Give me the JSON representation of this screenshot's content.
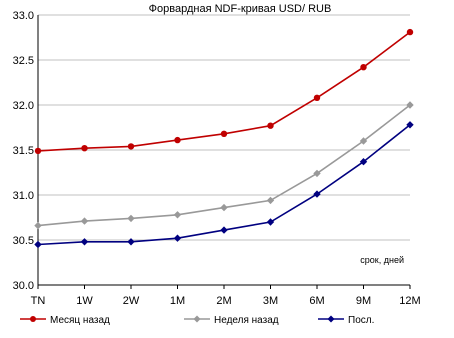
{
  "chart_data": {
    "type": "line",
    "title": "Форвардная NDF-кривая USD/ RUB",
    "xlabel": "",
    "ylabel": "",
    "annotation": "срок, дней",
    "categories": [
      "TN",
      "1W",
      "2W",
      "1M",
      "2M",
      "3M",
      "6M",
      "9M",
      "12M"
    ],
    "ylim": [
      30.0,
      33.0
    ],
    "yticks": [
      "30.0",
      "30.5",
      "31.0",
      "31.5",
      "32.0",
      "32.5",
      "33.0"
    ],
    "grid": true,
    "legend_position": "bottom",
    "series": [
      {
        "name": "Месяц назад",
        "color": "#c00000",
        "marker": "circle",
        "values": [
          31.49,
          31.52,
          31.54,
          31.61,
          31.68,
          31.77,
          32.08,
          32.42,
          32.81
        ]
      },
      {
        "name": "Неделя назад",
        "color": "#999999",
        "marker": "diamond",
        "values": [
          30.66,
          30.71,
          30.74,
          30.78,
          30.86,
          30.94,
          31.24,
          31.6,
          32.0
        ]
      },
      {
        "name": "Посл.",
        "color": "#000080",
        "marker": "diamond",
        "values": [
          30.45,
          30.48,
          30.48,
          30.52,
          30.61,
          30.7,
          31.01,
          31.37,
          31.78
        ]
      }
    ]
  }
}
